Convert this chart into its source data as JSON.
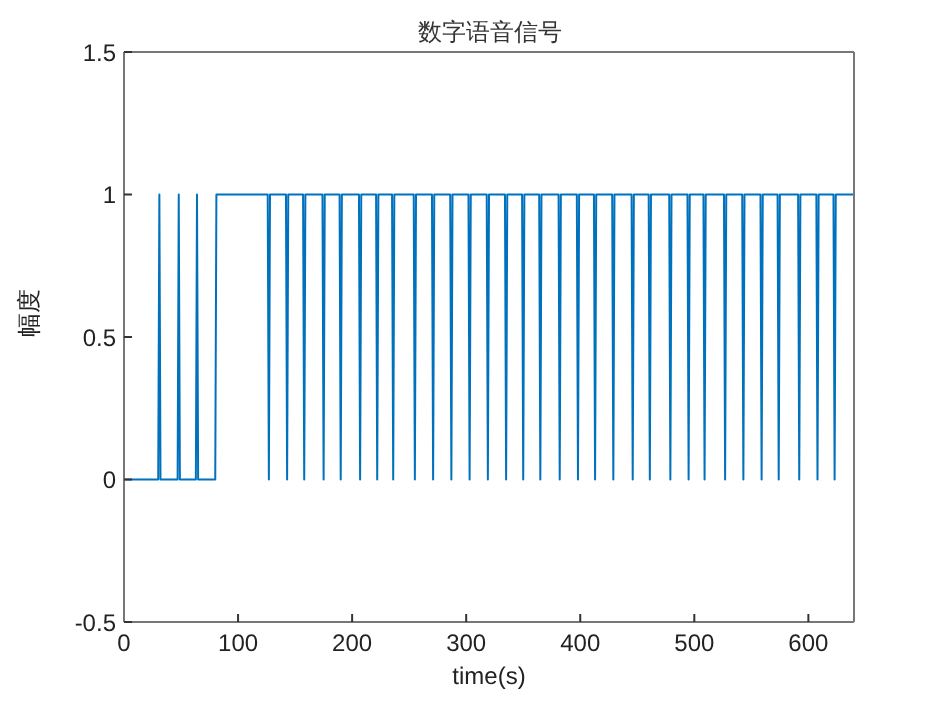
{
  "chart_data": {
    "type": "line",
    "title": "数字语音信号",
    "xlabel": "time(s)",
    "ylabel": "幅度",
    "xlim": [
      0,
      640
    ],
    "ylim": [
      -0.5,
      1.5
    ],
    "xticks": [
      0,
      100,
      200,
      300,
      400,
      500,
      600
    ],
    "yticks": [
      -0.5,
      0,
      0.5,
      1,
      1.5
    ],
    "x": [
      0,
      30,
      31,
      32,
      47,
      48,
      49,
      63,
      64,
      65,
      80,
      81,
      126,
      127,
      128,
      142,
      143,
      144,
      157,
      158,
      159,
      174,
      175,
      176,
      189,
      190,
      191,
      206,
      207,
      208,
      221,
      222,
      223,
      235,
      236,
      237,
      254,
      255,
      256,
      270,
      271,
      272,
      286,
      287,
      288,
      302,
      303,
      304,
      318,
      319,
      320,
      334,
      335,
      336,
      349,
      350,
      351,
      364,
      365,
      366,
      381,
      382,
      383,
      397,
      398,
      399,
      412,
      413,
      414,
      428,
      429,
      430,
      445,
      446,
      447,
      460,
      461,
      462,
      478,
      479,
      480,
      494,
      495,
      496,
      508,
      509,
      510,
      526,
      527,
      528,
      542,
      543,
      544,
      558,
      559,
      560,
      573,
      574,
      575,
      591,
      592,
      593,
      607,
      608,
      609,
      622,
      623,
      624,
      640
    ],
    "series": [
      {
        "color": "#0072bd",
        "values": [
          0,
          0,
          1,
          0,
          0,
          1,
          0,
          0,
          1,
          0,
          0,
          1,
          1,
          0,
          1,
          1,
          0,
          1,
          1,
          0,
          1,
          1,
          0,
          1,
          1,
          0,
          1,
          1,
          0,
          1,
          1,
          0,
          1,
          1,
          0,
          1,
          1,
          0,
          1,
          1,
          0,
          1,
          1,
          0,
          1,
          1,
          0,
          1,
          1,
          0,
          1,
          1,
          0,
          1,
          1,
          0,
          1,
          1,
          0,
          1,
          1,
          0,
          1,
          1,
          0,
          1,
          1,
          0,
          1,
          1,
          0,
          1,
          1,
          0,
          1,
          1,
          0,
          1,
          1,
          0,
          1,
          1,
          0,
          1,
          1,
          0,
          1,
          1,
          0,
          1,
          1,
          0,
          1,
          1,
          0,
          1,
          1,
          0,
          1,
          1,
          0,
          1,
          1,
          0,
          1,
          1,
          0,
          1,
          1
        ]
      }
    ]
  }
}
